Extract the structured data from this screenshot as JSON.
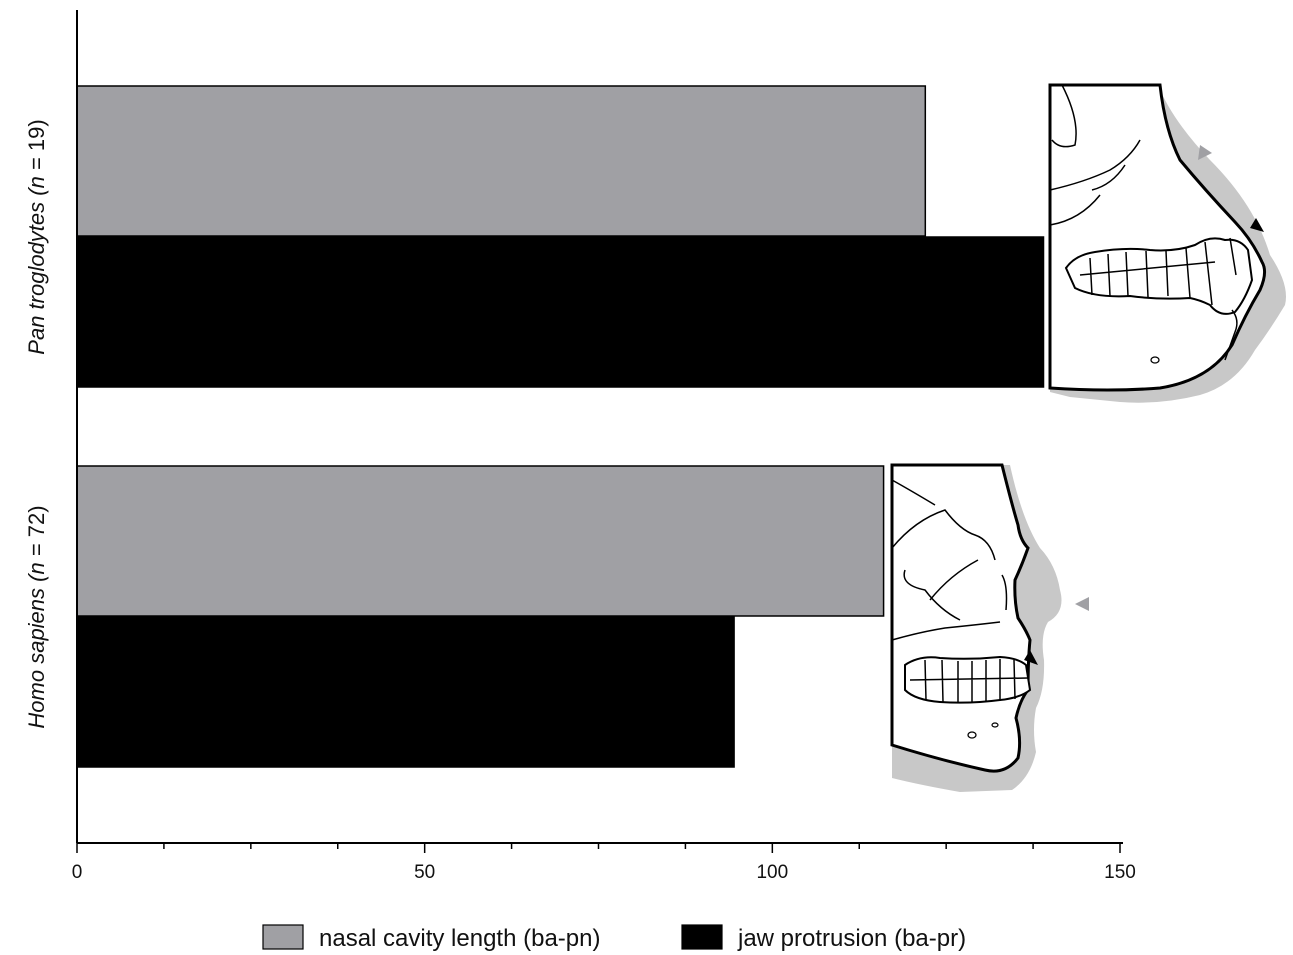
{
  "chart_data": {
    "type": "bar",
    "orientation": "horizontal",
    "categories": [
      {
        "name": "Pan troglodytes",
        "n": "n",
        "count": "19",
        "label": "Pan troglodytes (n = 19)"
      },
      {
        "name": "Homo sapiens",
        "n": "n",
        "count": "72",
        "label": "Homo sapiens (n = 72)"
      }
    ],
    "series": [
      {
        "name": "nasal cavity length (ba-pn)",
        "color": "#a0a0a4",
        "values": [
          122,
          116
        ]
      },
      {
        "name": "jaw protrusion (ba-pr)",
        "color": "#000000",
        "values": [
          139,
          94.5
        ]
      }
    ],
    "xlim": [
      0,
      150
    ],
    "xticks": [
      0,
      50,
      100,
      150
    ],
    "xticks_minor_step": 12.5,
    "xlabel": "",
    "ylabel": "",
    "title": "",
    "grid": false,
    "legend_position": "bottom"
  },
  "illustrations": [
    {
      "name": "chimpanzee-skull-illustration",
      "category": "Pan troglodytes"
    },
    {
      "name": "human-skull-illustration",
      "category": "Homo sapiens"
    }
  ]
}
